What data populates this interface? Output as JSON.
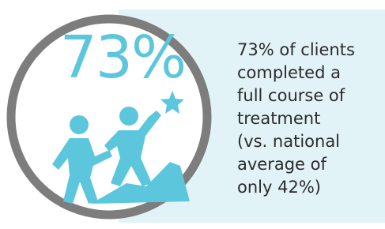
{
  "stat": "73%",
  "description": [
    "73% of clients",
    "completed a",
    "full course of",
    "treatment",
    "(vs. national",
    "average of",
    "only 42%)"
  ]
}
